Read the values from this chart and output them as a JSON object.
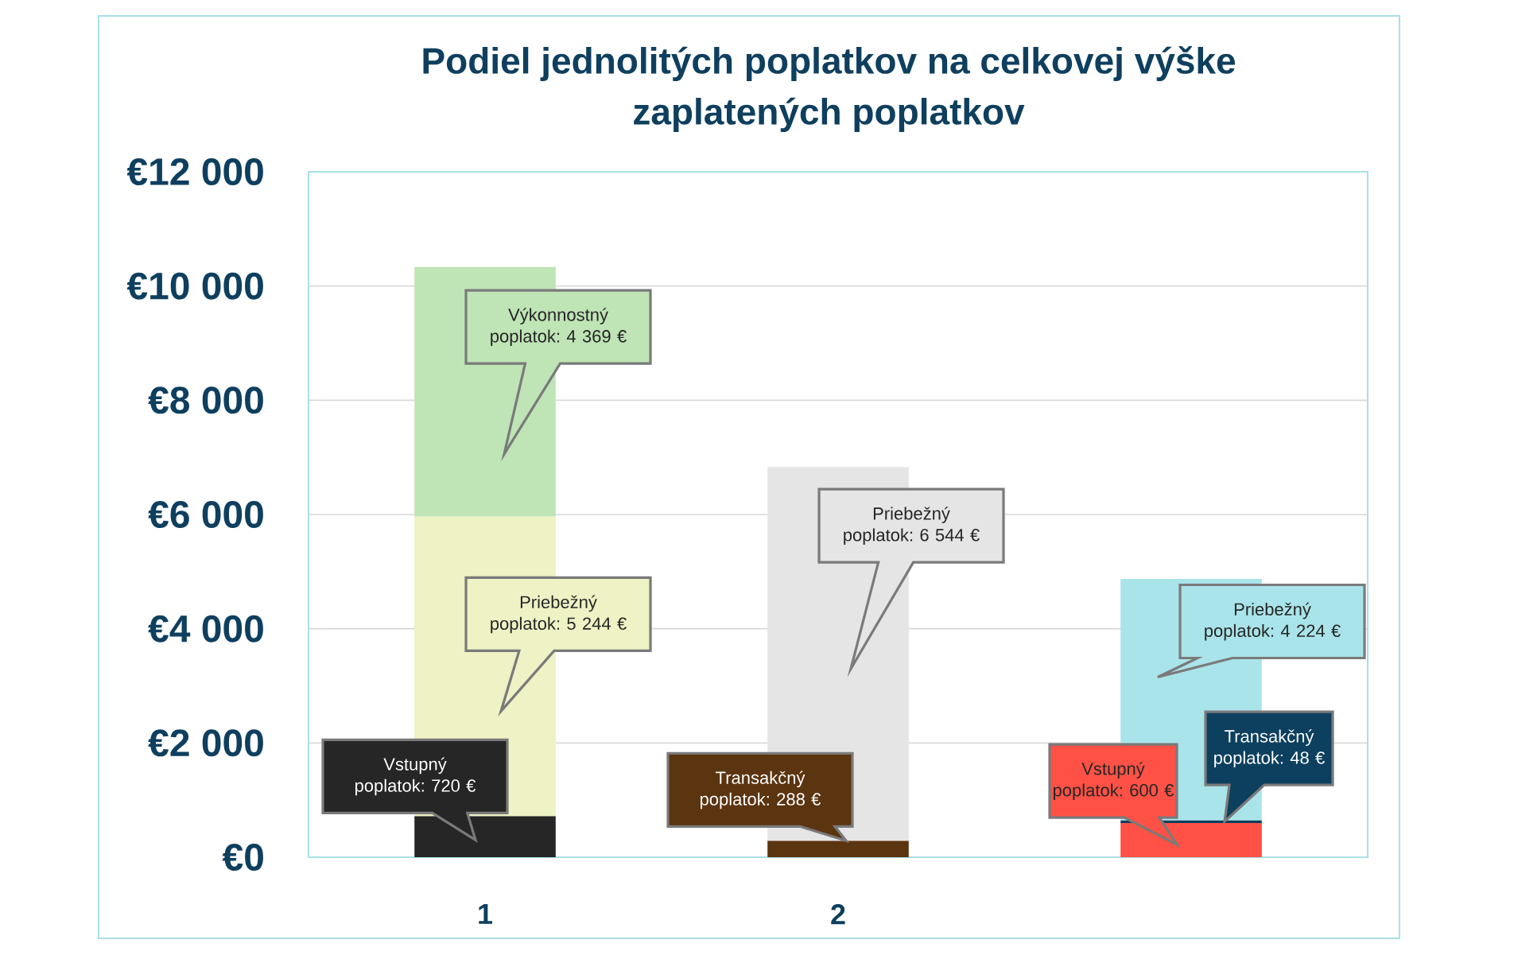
{
  "chart_data": {
    "type": "bar",
    "title": "Podiel jednolitých poplatkov na celkovej výške zaplatených poplatkov",
    "categories": [
      "1",
      "2",
      null
    ],
    "stacked": true,
    "series": [
      {
        "values": [
          720,
          null,
          600
        ],
        "colors": [
          "#262626",
          null,
          "#ff5146"
        ],
        "value_labels": [
          "Vstupný poplatok: 720 €",
          null,
          "Vstupný poplatok: 600 €"
        ]
      },
      {
        "values": [
          null,
          288,
          48
        ],
        "colors": [
          null,
          "#5b3410",
          "#0d405f"
        ],
        "value_labels": [
          null,
          "Transakčný poplatok: 288 €",
          "Transakčný poplatok: 48 €"
        ]
      },
      {
        "values": [
          5244,
          6544,
          4224
        ],
        "colors": [
          "#eef2c4",
          "#e5e5e5",
          "#a9e4ea"
        ],
        "value_labels": [
          "Priebežný poplatok: 5 244 €",
          "Priebežný poplatok: 6 544 €",
          "Priebežný poplatok: 4 224 €"
        ]
      },
      {
        "values": [
          4369,
          null,
          null
        ],
        "colors": [
          "#bfe4b6",
          null,
          null
        ],
        "value_labels": [
          "Výkonnostný poplatok: 4 369 €",
          null,
          null
        ]
      }
    ],
    "ylim": [
      0,
      12000
    ],
    "yticks": [
      {
        "value": 0,
        "label": "€0"
      },
      {
        "value": 2000,
        "label": "€2 000"
      },
      {
        "value": 4000,
        "label": "€4 000"
      },
      {
        "value": 6000,
        "label": "€6 000"
      },
      {
        "value": 8000,
        "label": "€8 000"
      },
      {
        "value": 10000,
        "label": "€10 000"
      },
      {
        "value": 12000,
        "label": "€12 000"
      }
    ],
    "grid": "y"
  }
}
